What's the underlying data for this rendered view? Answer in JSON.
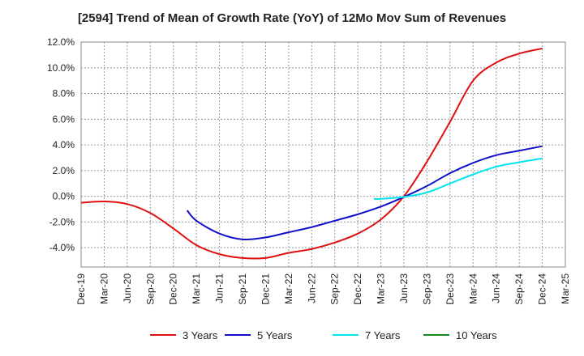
{
  "chart_data": {
    "type": "line",
    "title": "[2594]  Trend of Mean of Growth Rate (YoY) of 12Mo Mov Sum of Revenues",
    "xlabel": "",
    "ylabel": "",
    "ylim": [
      -5.5,
      12.0
    ],
    "y_ticks": [
      12.0,
      10.0,
      8.0,
      6.0,
      4.0,
      2.0,
      0.0,
      -2.0,
      -4.0
    ],
    "y_tick_labels": [
      "12.0%",
      "10.0%",
      "8.0%",
      "6.0%",
      "4.0%",
      "2.0%",
      "0.0%",
      "-2.0%",
      "-4.0%"
    ],
    "x_tick_labels": [
      "Dec-19",
      "Mar-20",
      "Jun-20",
      "Sep-20",
      "Dec-20",
      "Mar-21",
      "Jun-21",
      "Sep-21",
      "Dec-21",
      "Mar-22",
      "Jun-22",
      "Sep-22",
      "Dec-22",
      "Mar-23",
      "Jun-23",
      "Sep-23",
      "Dec-23",
      "Mar-24",
      "Jun-24",
      "Sep-24",
      "Dec-24",
      "Mar-25"
    ],
    "grid": true,
    "legend_position": "bottom",
    "series": [
      {
        "name": "3 Years",
        "color": "#e01010",
        "points": [
          [
            0,
            -0.5
          ],
          [
            1,
            -0.4
          ],
          [
            2,
            -0.6
          ],
          [
            3,
            -1.3
          ],
          [
            4,
            -2.5
          ],
          [
            5,
            -3.8
          ],
          [
            6,
            -4.5
          ],
          [
            7,
            -4.8
          ],
          [
            8,
            -4.8
          ],
          [
            9,
            -4.4
          ],
          [
            10,
            -4.1
          ],
          [
            11,
            -3.6
          ],
          [
            12,
            -2.9
          ],
          [
            13,
            -1.8
          ],
          [
            14,
            0.0
          ],
          [
            15,
            2.7
          ],
          [
            16,
            5.8
          ],
          [
            17,
            9.0
          ],
          [
            18,
            10.4
          ],
          [
            19,
            11.1
          ],
          [
            20,
            11.5
          ]
        ]
      },
      {
        "name": "5 Years",
        "color": "#1010cc",
        "points": [
          [
            4.6,
            -1.1
          ],
          [
            5,
            -1.9
          ],
          [
            6,
            -2.9
          ],
          [
            7,
            -3.35
          ],
          [
            8,
            -3.2
          ],
          [
            9,
            -2.8
          ],
          [
            10,
            -2.4
          ],
          [
            11,
            -1.9
          ],
          [
            12,
            -1.4
          ],
          [
            13,
            -0.8
          ],
          [
            14,
            -0.05
          ],
          [
            15,
            0.8
          ],
          [
            16,
            1.8
          ],
          [
            17,
            2.6
          ],
          [
            18,
            3.2
          ],
          [
            19,
            3.55
          ],
          [
            20,
            3.9
          ]
        ]
      },
      {
        "name": "7 Years",
        "color": "#00e5ee",
        "points": [
          [
            12.7,
            -0.2
          ],
          [
            13,
            -0.2
          ],
          [
            14,
            -0.05
          ],
          [
            15,
            0.3
          ],
          [
            16,
            1.0
          ],
          [
            17,
            1.7
          ],
          [
            18,
            2.3
          ],
          [
            19,
            2.65
          ],
          [
            20,
            2.95
          ]
        ]
      },
      {
        "name": "10 Years",
        "color": "#1a8a1a",
        "points": []
      }
    ]
  }
}
